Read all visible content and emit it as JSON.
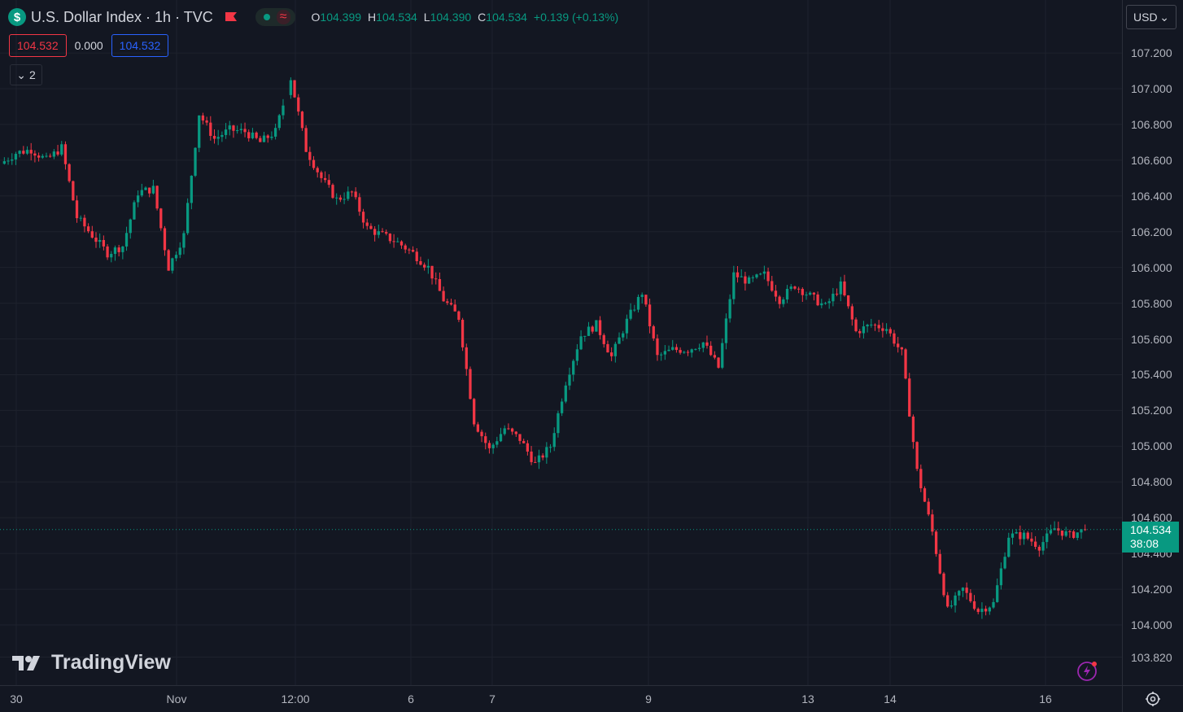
{
  "legend": {
    "symbol_icon": "$",
    "title": "U.S. Dollar Index · 1h · TVC",
    "ohlc": {
      "o_label": "O",
      "o_value": "104.399",
      "h_label": "H",
      "h_value": "104.534",
      "l_label": "L",
      "l_value": "104.390",
      "c_label": "C",
      "c_value": "104.534",
      "change": "+0.139 (+0.13%)"
    },
    "sell_price": "104.532",
    "spread": "0.000",
    "buy_price": "104.532",
    "collapse_count": "2"
  },
  "currency": {
    "label": "USD"
  },
  "last_price": {
    "value": "104.534",
    "countdown": "38:08"
  },
  "branding": {
    "logo_text": "TradingView"
  },
  "colors": {
    "up": "#089981",
    "down": "#f23645",
    "background": "#131722",
    "grid": "#1e222d"
  },
  "chart_data": {
    "type": "candlestick",
    "title": "U.S. Dollar Index · 1h · TVC",
    "ylim": [
      103.74,
      107.4
    ],
    "y_ticks": [
      "107.200",
      "107.000",
      "106.800",
      "106.600",
      "106.400",
      "106.200",
      "106.000",
      "105.800",
      "105.600",
      "105.400",
      "105.200",
      "105.000",
      "104.800",
      "104.600",
      "104.400",
      "104.200",
      "104.000",
      "103.820"
    ],
    "x_ticks": [
      "30",
      "Nov",
      "12:00",
      "6",
      "7",
      "9",
      "13",
      "14",
      "16"
    ],
    "grid": true,
    "last_value": 104.534,
    "path": [
      106.58,
      106.64,
      106.66,
      106.6,
      106.67,
      106.28,
      106.18,
      106.08,
      106.12,
      106.42,
      106.44,
      106.0,
      106.18,
      106.86,
      106.72,
      106.77,
      106.76,
      106.7,
      106.76,
      107.06,
      106.66,
      106.5,
      106.38,
      106.42,
      106.22,
      106.18,
      106.14,
      106.08,
      106.0,
      105.82,
      105.72,
      105.14,
      104.98,
      105.1,
      105.04,
      104.9,
      105.0,
      105.36,
      105.62,
      105.68,
      105.5,
      105.7,
      105.86,
      105.5,
      105.54,
      105.54,
      105.58,
      105.44,
      105.96,
      105.92,
      105.96,
      105.82,
      105.9,
      105.84,
      105.78,
      105.9,
      105.64,
      105.68,
      105.66,
      105.52,
      104.86,
      104.52,
      104.08,
      104.2,
      104.08,
      104.12,
      104.5,
      104.5,
      104.44,
      104.54,
      104.5,
      104.534
    ],
    "series": [
      {
        "name": "",
        "values": []
      }
    ]
  }
}
